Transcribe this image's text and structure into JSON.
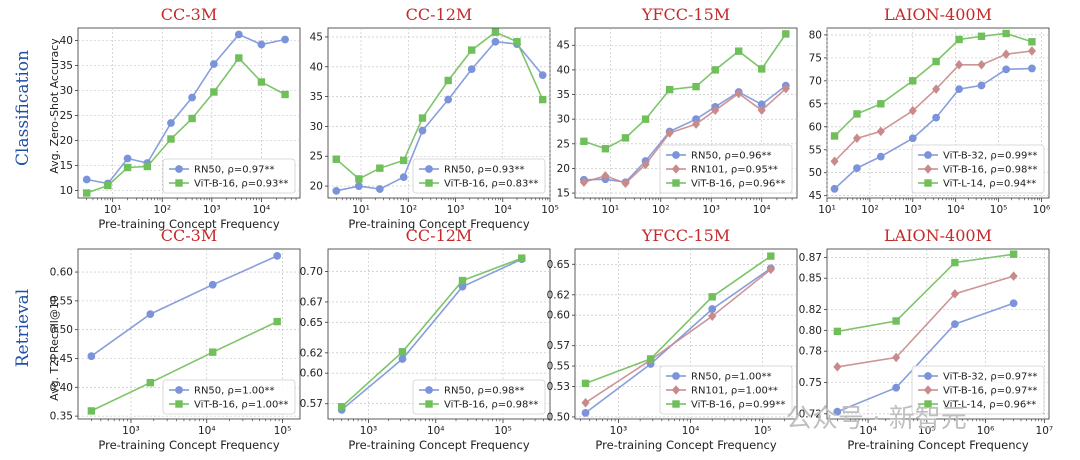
{
  "row_labels": [
    "Classification",
    "Retrieval"
  ],
  "ylabels": [
    "Avg. Zero-Shot Accuracy",
    "Avg. T2I Recall@10"
  ],
  "watermark": "公众号 · 新智元",
  "colors": {
    "title": "#c62828",
    "row_label": "#1f4fa8",
    "blue": "#7b93d9",
    "red": "#c98a8a",
    "green": "#6fbf5a"
  },
  "chart_data": [
    {
      "type": "line",
      "title": "CC-3M",
      "xlabel": "Pre-training Concept Frequency",
      "ylabel": "Avg. Zero-Shot Accuracy",
      "xscale": "log",
      "xlim": [
        2,
        60000
      ],
      "ylim": [
        8.5,
        42.5
      ],
      "yticks": [
        10,
        15,
        20,
        25,
        30,
        35,
        40
      ],
      "xtick_exps": [
        1,
        2,
        3,
        4
      ],
      "legend": "lower-right",
      "series": [
        {
          "name": "RN50, ρ=0.97**",
          "color": "blue",
          "marker": "circle",
          "x": [
            3,
            8,
            20,
            50,
            150,
            400,
            1100,
            3500,
            10000,
            30000
          ],
          "y": [
            12.2,
            11.4,
            16.4,
            15.5,
            23.5,
            28.6,
            35.3,
            41.2,
            39.2,
            40.2
          ]
        },
        {
          "name": "ViT-B-16, ρ=0.93**",
          "color": "green",
          "marker": "square",
          "x": [
            3,
            8,
            20,
            50,
            150,
            400,
            1100,
            3500,
            10000,
            30000
          ],
          "y": [
            9.5,
            11.0,
            14.6,
            14.8,
            20.3,
            24.4,
            29.7,
            36.5,
            31.7,
            29.2
          ]
        }
      ]
    },
    {
      "type": "line",
      "title": "CC-12M",
      "xlabel": "Pre-training Concept Frequency",
      "ylabel": "",
      "xscale": "log",
      "xlim": [
        2,
        100000
      ],
      "ylim": [
        18,
        46.5
      ],
      "yticks": [
        20,
        25,
        30,
        35,
        40,
        45
      ],
      "xtick_exps": [
        1,
        2,
        3,
        4,
        5
      ],
      "legend": "lower-right",
      "series": [
        {
          "name": "RN50, ρ=0.93**",
          "color": "blue",
          "marker": "circle",
          "x": [
            3,
            9,
            25,
            80,
            200,
            700,
            2200,
            7000,
            20000,
            70000
          ],
          "y": [
            19.2,
            20.0,
            19.5,
            21.5,
            29.3,
            34.5,
            39.6,
            44.2,
            43.8,
            38.6
          ]
        },
        {
          "name": "ViT-B-16, ρ=0.83**",
          "color": "green",
          "marker": "square",
          "x": [
            3,
            9,
            25,
            80,
            200,
            700,
            2200,
            7000,
            20000,
            70000
          ],
          "y": [
            24.5,
            21.2,
            23.0,
            24.3,
            31.4,
            37.7,
            42.8,
            45.8,
            44.2,
            34.5
          ]
        }
      ]
    },
    {
      "type": "line",
      "title": "YFCC-15M",
      "xlabel": "",
      "ylabel": "",
      "xscale": "log",
      "xlim": [
        2,
        50000
      ],
      "ylim": [
        14,
        48.5
      ],
      "yticks": [
        15,
        20,
        25,
        30,
        35,
        40,
        45
      ],
      "xtick_exps": [
        1,
        2,
        3,
        4
      ],
      "legend": "lower-right",
      "series": [
        {
          "name": "RN50, ρ=0.96**",
          "color": "blue",
          "marker": "circle",
          "x": [
            3,
            8,
            20,
            50,
            150,
            500,
            1200,
            3500,
            10000,
            30000
          ],
          "y": [
            17.7,
            17.8,
            17.2,
            21.5,
            27.5,
            30.0,
            32.5,
            35.5,
            33.0,
            36.8
          ]
        },
        {
          "name": "RN101, ρ=0.95**",
          "color": "red",
          "marker": "diamond",
          "x": [
            3,
            8,
            20,
            50,
            150,
            500,
            1200,
            3500,
            10000,
            30000
          ],
          "y": [
            17.2,
            18.5,
            17.0,
            20.8,
            27.2,
            29.0,
            31.8,
            35.2,
            31.8,
            36.2
          ]
        },
        {
          "name": "ViT-B-16, ρ=0.96**",
          "color": "green",
          "marker": "square",
          "x": [
            3,
            8,
            20,
            50,
            150,
            500,
            1200,
            3500,
            10000,
            30000
          ],
          "y": [
            25.5,
            24.0,
            26.2,
            30.0,
            36.0,
            36.6,
            40.0,
            43.8,
            40.2,
            47.3
          ]
        }
      ]
    },
    {
      "type": "line",
      "title": "LAION-400M",
      "xlabel": "",
      "ylabel": "",
      "xscale": "log",
      "xlim": [
        10,
        1500000
      ],
      "ylim": [
        44.5,
        81.5
      ],
      "yticks": [
        45,
        50,
        55,
        60,
        65,
        70,
        75,
        80
      ],
      "xtick_exps": [
        1,
        2,
        3,
        4,
        5,
        6
      ],
      "legend": "lower-right",
      "series": [
        {
          "name": "ViT-B-32, ρ=0.99**",
          "color": "blue",
          "marker": "circle",
          "x": [
            15,
            50,
            180,
            1000,
            3500,
            12000,
            40000,
            150000,
            600000
          ],
          "y": [
            46.5,
            51.0,
            53.5,
            57.5,
            62.0,
            68.2,
            69.0,
            72.5,
            72.7
          ]
        },
        {
          "name": "ViT-B-16, ρ=0.98**",
          "color": "red",
          "marker": "diamond",
          "x": [
            15,
            50,
            180,
            1000,
            3500,
            12000,
            40000,
            150000,
            600000
          ],
          "y": [
            52.5,
            57.5,
            59.0,
            63.5,
            68.2,
            73.5,
            73.5,
            75.8,
            76.5
          ]
        },
        {
          "name": "ViT-L-14, ρ=0.94**",
          "color": "green",
          "marker": "square",
          "x": [
            15,
            50,
            180,
            1000,
            3500,
            12000,
            40000,
            150000,
            600000
          ],
          "y": [
            58.0,
            62.8,
            65.0,
            70.0,
            74.2,
            79.0,
            79.7,
            80.3,
            78.5
          ]
        }
      ]
    },
    {
      "type": "line",
      "title": "CC-3M",
      "xlabel": "Pre-training Concept Frequency",
      "ylabel": "Avg. T2I Recall@10",
      "xscale": "log",
      "xlim": [
        200,
        170000
      ],
      "ylim": [
        0.345,
        0.64
      ],
      "yticks": [
        "0.35",
        "0.40",
        "0.45",
        "0.50",
        "0.55",
        "0.60"
      ],
      "xtick_exps": [
        3,
        4,
        5
      ],
      "legend": "lower-right",
      "series": [
        {
          "name": "RN50, ρ=1.00**",
          "color": "blue",
          "marker": "circle",
          "x": [
            300,
            1800,
            12000,
            85000
          ],
          "y": [
            0.454,
            0.527,
            0.578,
            0.628
          ]
        },
        {
          "name": "ViT-B-16, ρ=1.00**",
          "color": "green",
          "marker": "square",
          "x": [
            300,
            1800,
            12000,
            85000
          ],
          "y": [
            0.359,
            0.408,
            0.461,
            0.514
          ]
        }
      ]
    },
    {
      "type": "line",
      "title": "CC-12M",
      "xlabel": "Pre-training Concept Frequency",
      "ylabel": "",
      "xscale": "log",
      "xlim": [
        250,
        500000
      ],
      "ylim": [
        0.555,
        0.722
      ],
      "yticks": [
        "0.57",
        "0.60",
        "0.62",
        "0.65",
        "0.67",
        "0.70"
      ],
      "xtick_exps": [
        3,
        4,
        5
      ],
      "legend": "lower-right",
      "series": [
        {
          "name": "RN50, ρ=0.98**",
          "color": "blue",
          "marker": "circle",
          "x": [
            400,
            3200,
            25000,
            190000
          ],
          "y": [
            0.564,
            0.614,
            0.685,
            0.712
          ]
        },
        {
          "name": "ViT-B-16, ρ=0.98**",
          "color": "green",
          "marker": "square",
          "x": [
            400,
            3200,
            25000,
            190000
          ],
          "y": [
            0.567,
            0.621,
            0.691,
            0.713
          ]
        }
      ]
    },
    {
      "type": "line",
      "title": "YFCC-15M",
      "xlabel": "Pre-training Concept Frequency",
      "ylabel": "",
      "xscale": "log",
      "xlim": [
        250,
        300000
      ],
      "ylim": [
        0.498,
        0.665
      ],
      "yticks": [
        "0.50",
        "0.53",
        "0.55",
        "0.57",
        "0.60",
        "0.62",
        "0.65"
      ],
      "xtick_exps": [
        3,
        4,
        5
      ],
      "legend": "lower-right",
      "series": [
        {
          "name": "RN50, ρ=1.00**",
          "color": "blue",
          "marker": "circle",
          "x": [
            350,
            2800,
            20000,
            130000
          ],
          "y": [
            0.504,
            0.552,
            0.606,
            0.646
          ]
        },
        {
          "name": "RN101, ρ=1.00**",
          "color": "red",
          "marker": "diamond",
          "x": [
            350,
            2800,
            20000,
            130000
          ],
          "y": [
            0.514,
            0.556,
            0.599,
            0.645
          ]
        },
        {
          "name": "ViT-B-16, ρ=0.99**",
          "color": "green",
          "marker": "square",
          "x": [
            350,
            2800,
            20000,
            130000
          ],
          "y": [
            0.533,
            0.557,
            0.618,
            0.658
          ]
        }
      ]
    },
    {
      "type": "line",
      "title": "LAION-400M",
      "xlabel": "Pre-training Concept Frequency",
      "ylabel": "",
      "xscale": "log",
      "xlim": [
        2000,
        12000000
      ],
      "ylim": [
        0.715,
        0.878
      ],
      "yticks": [
        "0.72",
        "0.75",
        "0.78",
        "0.80",
        "0.82",
        "0.85",
        "0.87"
      ],
      "xtick_exps": [
        4,
        5,
        6,
        7
      ],
      "legend": "lower-right",
      "series": [
        {
          "name": "ViT-B-32, ρ=0.97**",
          "color": "blue",
          "marker": "circle",
          "x": [
            3000,
            30000,
            300000,
            3000000
          ],
          "y": [
            0.722,
            0.745,
            0.806,
            0.826
          ]
        },
        {
          "name": "ViT-B-16, ρ=0.97**",
          "color": "red",
          "marker": "diamond",
          "x": [
            3000,
            30000,
            300000,
            3000000
          ],
          "y": [
            0.765,
            0.774,
            0.835,
            0.852
          ]
        },
        {
          "name": "ViT-L-14, ρ=0.96**",
          "color": "green",
          "marker": "square",
          "x": [
            3000,
            30000,
            300000,
            3000000
          ],
          "y": [
            0.799,
            0.809,
            0.865,
            0.873
          ]
        }
      ]
    }
  ]
}
